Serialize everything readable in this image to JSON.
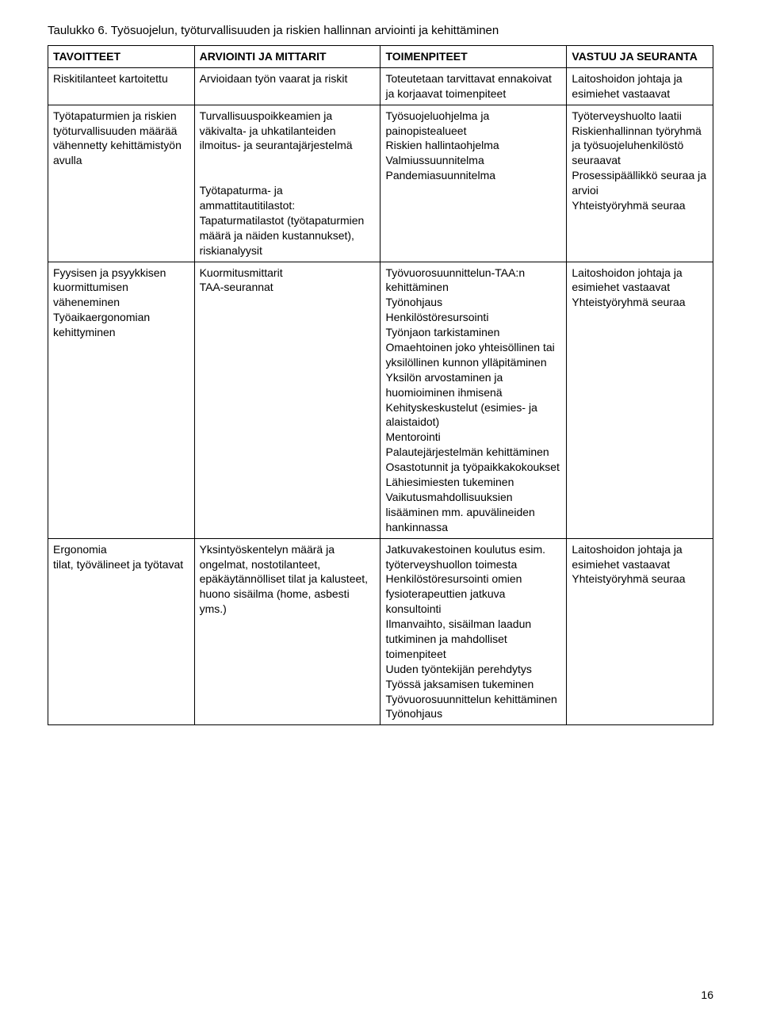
{
  "caption": "Taulukko 6. Työsuojelun, työturvallisuuden ja riskien hallinnan arviointi ja kehittäminen",
  "columns": [
    "TAVOITTEET",
    "ARVIOINTI JA MITTARIT",
    "TOIMENPITEET",
    "VASTUU JA SEURANTA"
  ],
  "rows": [
    {
      "tavoitteet": "Riskitilanteet kartoitettu",
      "arviointi": "Arvioidaan työn vaarat ja riskit",
      "toimenpiteet": "Toteutetaan tarvittavat ennakoivat ja korjaavat toimenpiteet",
      "vastuu": "Laitoshoidon johtaja ja esimiehet vastaavat"
    },
    {
      "tavoitteet": "Työtapaturmien ja riskien työturvallisuuden määrää vähennetty kehittämistyön avulla",
      "arviointi": "Turvallisuuspoikkeamien ja väkivalta- ja uhkatilanteiden ilmoitus- ja seurantajärjestelmä\n\nTyötapaturma- ja ammattitautitilastot: Tapaturmatilastot (työtapaturmien määrä ja näiden kustannukset), riskianalyysit",
      "toimenpiteet": "Työsuojeluohjelma ja painopistealueet\nRiskien hallintaohjelma\nValmiussuunnitelma\nPandemiasuunnitelma",
      "vastuu": "Työterveyshuolto laatii\nRiskienhallinnan työryhmä ja työsuojeluhenkilöstö seuraavat\nProsessipäällikkö seuraa ja arvioi\nYhteistyöryhmä seuraa"
    },
    {
      "tavoitteet": "Fyysisen ja psyykkisen kuormittumisen väheneminen\nTyöaikaergonomian kehittyminen",
      "arviointi": "Kuormitusmittarit\nTAA-seurannat",
      "toimenpiteet": "Työvuorosuunnittelun-TAA:n kehittäminen\nTyönohjaus\nHenkilöstöresursointi\nTyönjaon tarkistaminen\nOmaehtoinen joko yhteisöllinen tai yksilöllinen kunnon ylläpitäminen\nYksilön arvostaminen ja huomioiminen ihmisenä\nKehityskeskustelut (esimies- ja alaistaidot)\nMentorointi\nPalautejärjestelmän kehittäminen\nOsastotunnit ja työpaikkakokoukset\nLähiesimiesten tukeminen\nVaikutusmahdollisuuksien lisääminen mm. apuvälineiden hankinnassa",
      "vastuu": "Laitoshoidon johtaja ja esimiehet vastaavat\nYhteistyöryhmä seuraa"
    },
    {
      "tavoitteet": "Ergonomia\ntilat, työvälineet ja työtavat",
      "arviointi": "Yksintyöskentelyn määrä ja ongelmat, nostotilanteet, epäkäytännölliset tilat ja kalusteet, huono sisäilma (home, asbesti yms.)",
      "toimenpiteet": "Jatkuvakestoinen koulutus esim. työterveyshuollon toimesta\nHenkilöstöresursointi omien fysioterapeuttien jatkuva konsultointi\nIlmanvaihto, sisäilman laadun tutkiminen ja mahdolliset toimenpiteet\nUuden työntekijän perehdytys\nTyössä jaksamisen tukeminen\nTyövuorosuunnittelun kehittäminen\nTyönohjaus",
      "vastuu": "Laitoshoidon johtaja ja esimiehet vastaavat\nYhteistyöryhmä seuraa"
    }
  ],
  "page_number": "16",
  "styles": {
    "font_family": "Arial",
    "caption_fontsize": 15,
    "cell_fontsize": 14,
    "text_color": "#000000",
    "background_color": "#ffffff",
    "border_color": "#000000",
    "col_widths_pct": [
      22,
      28,
      28,
      22
    ]
  }
}
